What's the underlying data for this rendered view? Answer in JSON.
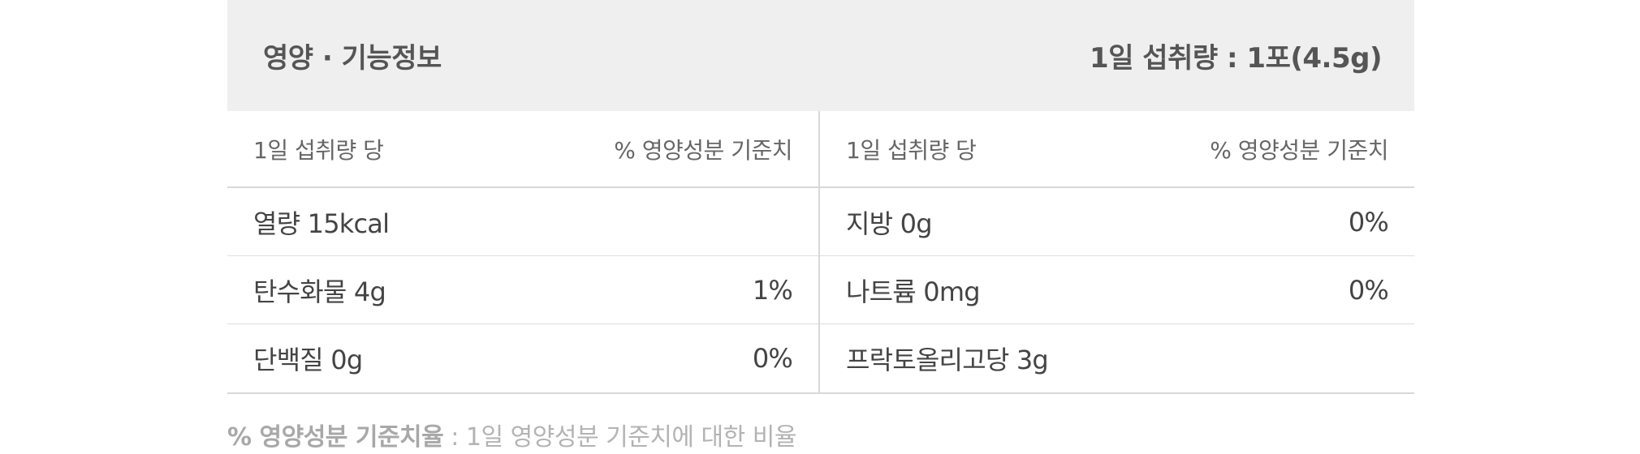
{
  "header": {
    "title": "영양 · 기능정보",
    "serving": "1일 섭취량 : 1포(4.5g)"
  },
  "columns": {
    "per_serving_label": "1일 섭취량 당",
    "dv_label": "% 영양성분 기준치"
  },
  "left_rows": [
    {
      "name": "열량 15kcal",
      "dv": ""
    },
    {
      "name": "탄수화물 4g",
      "dv": "1%"
    },
    {
      "name": "단백질 0g",
      "dv": "0%"
    }
  ],
  "right_rows": [
    {
      "name": "지방 0g",
      "dv": "0%"
    },
    {
      "name": "나트륨 0mg",
      "dv": "0%"
    },
    {
      "name": "프락토올리고당 3g",
      "dv": ""
    }
  ],
  "footnote": {
    "term": "% 영양성분 기준치율",
    "definition": " : 1일 영양성분 기준치에 대한 비율"
  }
}
